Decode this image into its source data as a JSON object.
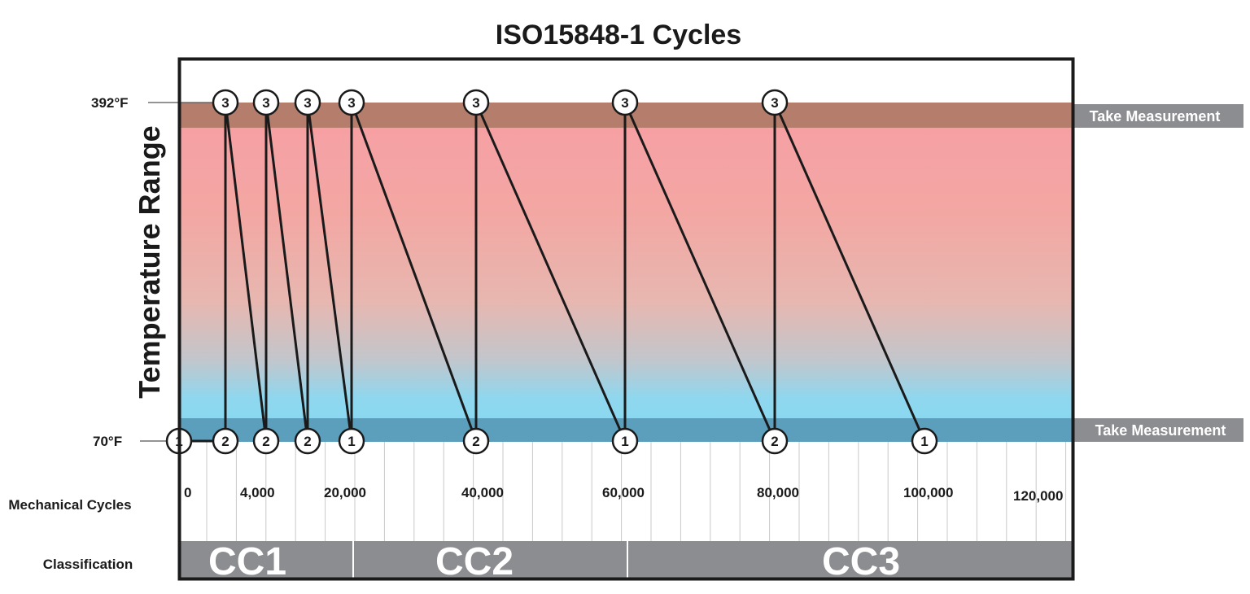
{
  "title": "ISO15848-1 Cycles",
  "y_axis_label": "Temperature Range",
  "temperatures": {
    "high": "392°F",
    "low": "70°F"
  },
  "measurement_label": "Take Measurement",
  "row_labels": {
    "mechanical_cycles": "Mechanical Cycles",
    "classification": "Classification"
  },
  "cycle_ticks": [
    "0",
    "4,000",
    "20,000",
    "40,000",
    "60,000",
    "80,000",
    "100,000",
    "120,000"
  ],
  "classifications": [
    "CC1",
    "CC2",
    "CC3"
  ],
  "steps": [
    {
      "position": "low",
      "label": "1"
    },
    {
      "position": "low",
      "label": "2"
    },
    {
      "position": "high",
      "label": "3"
    },
    {
      "position": "low",
      "label": "2"
    },
    {
      "position": "high",
      "label": "3"
    },
    {
      "position": "low",
      "label": "2"
    },
    {
      "position": "high",
      "label": "3"
    },
    {
      "position": "low",
      "label": "1"
    },
    {
      "position": "high",
      "label": "3"
    },
    {
      "position": "low",
      "label": "2"
    },
    {
      "position": "high",
      "label": "3"
    },
    {
      "position": "low",
      "label": "1"
    },
    {
      "position": "high",
      "label": "3"
    },
    {
      "position": "low",
      "label": "2"
    },
    {
      "position": "high",
      "label": "3"
    },
    {
      "position": "low",
      "label": "1"
    }
  ],
  "colors": {
    "hot_band": "#b57e6c",
    "cold_band": "#5b9fbd",
    "hot_gradient": "#f59aa0",
    "cold_gradient": "#8bd8f0",
    "gray": "#8c8d90",
    "line": "#1a1a1a"
  }
}
